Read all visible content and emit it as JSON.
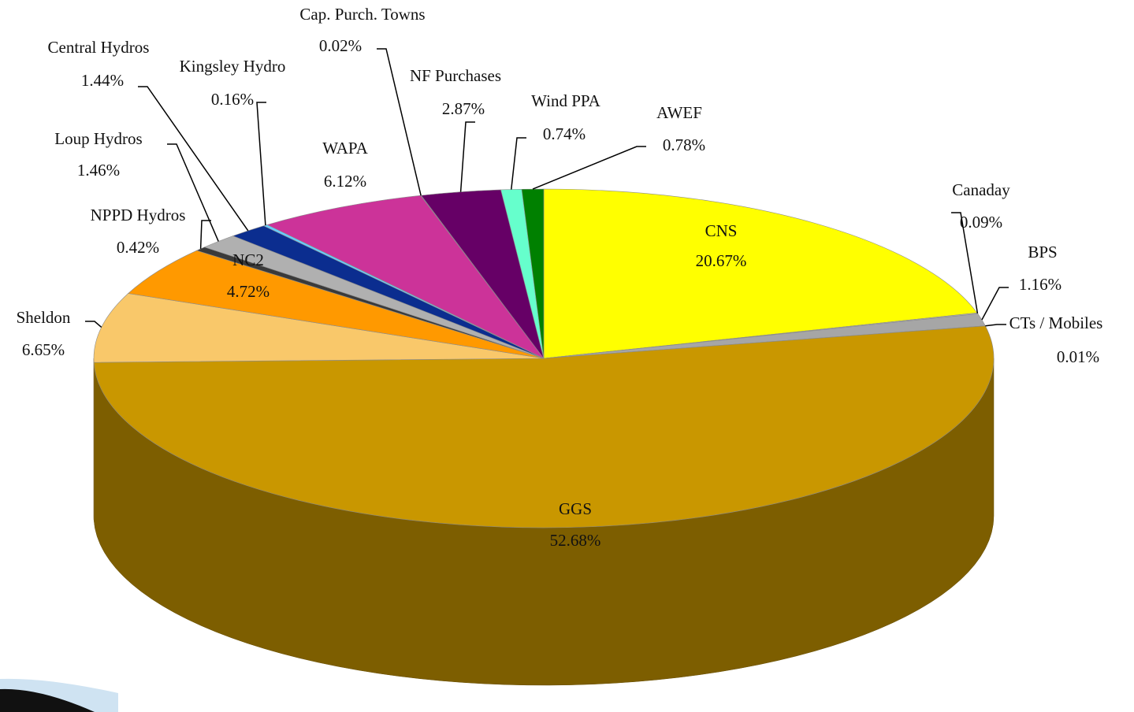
{
  "chart_data": {
    "type": "pie",
    "categories": [
      "CNS",
      "Canaday",
      "BPS",
      "CTs / Mobiles",
      "GGS",
      "Sheldon",
      "NC2",
      "NPPD Hydros",
      "Loup Hydros",
      "Central Hydros",
      "Kingsley Hydro",
      "WAPA",
      "Cap. Purch. Towns",
      "NF Purchases",
      "Wind PPA",
      "AWEF"
    ],
    "values": [
      20.67,
      0.09,
      1.16,
      0.01,
      52.68,
      6.65,
      4.72,
      0.42,
      1.46,
      1.44,
      0.16,
      6.12,
      0.02,
      2.87,
      0.74,
      0.78
    ],
    "value_labels": [
      "20.67%",
      "0.09%",
      "1.16%",
      "0.01%",
      "52.68%",
      "6.65%",
      "4.72%",
      "0.42%",
      "1.46%",
      "1.44%",
      "0.16%",
      "6.12%",
      "0.02%",
      "2.87%",
      "0.74%",
      "0.78%"
    ],
    "colors": [
      "#ffff00",
      "#b8b8b8",
      "#a6a6a6",
      "#c0c0c0",
      "#c99700",
      "#f9c86a",
      "#ff9900",
      "#3a3a3a",
      "#b0b0b0",
      "#0b2d8f",
      "#66ccff",
      "#cc3399",
      "#9a9a9a",
      "#660066",
      "#66ffcc",
      "#008000"
    ]
  }
}
